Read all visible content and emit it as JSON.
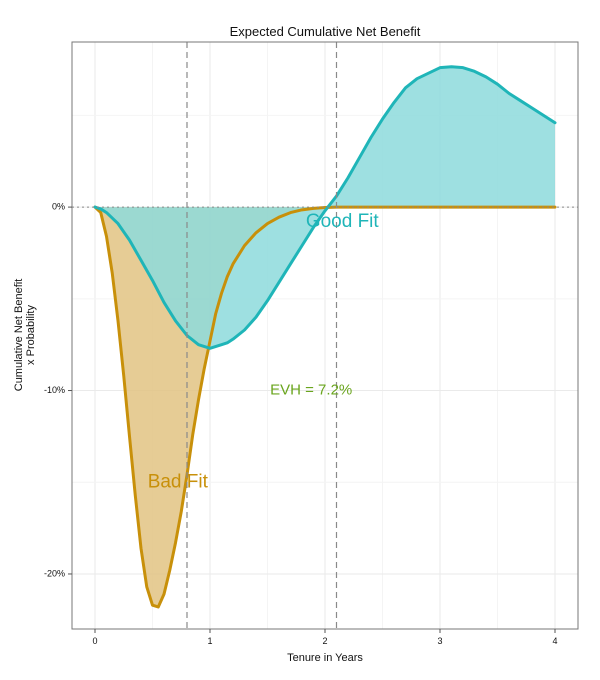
{
  "chart_data": {
    "type": "area",
    "title": "Expected Cumulative Net Benefit",
    "xlabel": "Tenure in Years",
    "ylabel_line1": "Cumulative Net Benefit",
    "ylabel_line2": "x Probability",
    "xlim": [
      -0.2,
      4.2
    ],
    "ylim": [
      -23,
      9
    ],
    "x_ticks": [
      0,
      1,
      2,
      3,
      4
    ],
    "x_tick_labels": [
      "0",
      "1",
      "2",
      "3",
      "4"
    ],
    "y_ticks": [
      0,
      -10,
      -20
    ],
    "y_tick_labels": [
      "0%",
      "-10%",
      "-20%"
    ],
    "grid": true,
    "vlines": [
      0.8,
      2.1
    ],
    "series": [
      {
        "name": "Bad Fit",
        "color": "#c8900a",
        "fill": "#e2c383",
        "x": [
          0,
          0.05,
          0.1,
          0.15,
          0.2,
          0.25,
          0.3,
          0.35,
          0.4,
          0.45,
          0.5,
          0.55,
          0.6,
          0.65,
          0.7,
          0.75,
          0.8,
          0.85,
          0.9,
          0.95,
          1.0,
          1.05,
          1.1,
          1.15,
          1.2,
          1.3,
          1.4,
          1.5,
          1.6,
          1.7,
          1.8,
          1.9,
          2.0,
          2.1,
          2.2,
          2.5,
          3.0,
          3.5,
          4.0
        ],
        "y": [
          0,
          -0.3,
          -1.6,
          -3.6,
          -6.2,
          -9.2,
          -12.5,
          -15.7,
          -18.6,
          -20.7,
          -21.7,
          -21.8,
          -21.1,
          -19.8,
          -18.3,
          -16.6,
          -14.6,
          -12.4,
          -10.5,
          -8.8,
          -7.3,
          -5.8,
          -4.7,
          -3.8,
          -3.1,
          -2.1,
          -1.4,
          -0.9,
          -0.55,
          -0.3,
          -0.15,
          -0.07,
          -0.02,
          0,
          0,
          0,
          0,
          0,
          0
        ]
      },
      {
        "name": "Good Fit",
        "color": "#1fb5b8",
        "fill": "#8ddadc",
        "x": [
          0,
          0.05,
          0.1,
          0.2,
          0.3,
          0.4,
          0.5,
          0.6,
          0.7,
          0.8,
          0.9,
          1.0,
          1.1,
          1.15,
          1.2,
          1.3,
          1.4,
          1.5,
          1.6,
          1.7,
          1.8,
          1.9,
          2.0,
          2.1,
          2.2,
          2.3,
          2.4,
          2.5,
          2.6,
          2.7,
          2.8,
          2.9,
          3.0,
          3.1,
          3.2,
          3.3,
          3.4,
          3.5,
          3.6,
          3.7,
          3.8,
          3.9,
          4.0
        ],
        "y": [
          0,
          -0.1,
          -0.3,
          -0.9,
          -1.8,
          -2.9,
          -4.0,
          -5.2,
          -6.2,
          -7.0,
          -7.5,
          -7.7,
          -7.5,
          -7.4,
          -7.2,
          -6.7,
          -6.0,
          -5.1,
          -4.1,
          -3.1,
          -2.1,
          -1.1,
          -0.2,
          0.6,
          1.6,
          2.7,
          3.8,
          4.8,
          5.7,
          6.5,
          7.0,
          7.3,
          7.6,
          7.65,
          7.6,
          7.4,
          7.1,
          6.7,
          6.2,
          5.8,
          5.4,
          5.0,
          4.6
        ]
      }
    ],
    "annotations": [
      {
        "text": "Good Fit",
        "x": 2.15,
        "y": -0.8,
        "color": "#1fb5b8"
      },
      {
        "text": "Bad Fit",
        "x": 0.72,
        "y": -15.0,
        "color": "#c8900a"
      },
      {
        "text": "EVH = 7.2%",
        "x": 1.88,
        "y": -10.0,
        "color": "#6aa51e"
      }
    ]
  }
}
